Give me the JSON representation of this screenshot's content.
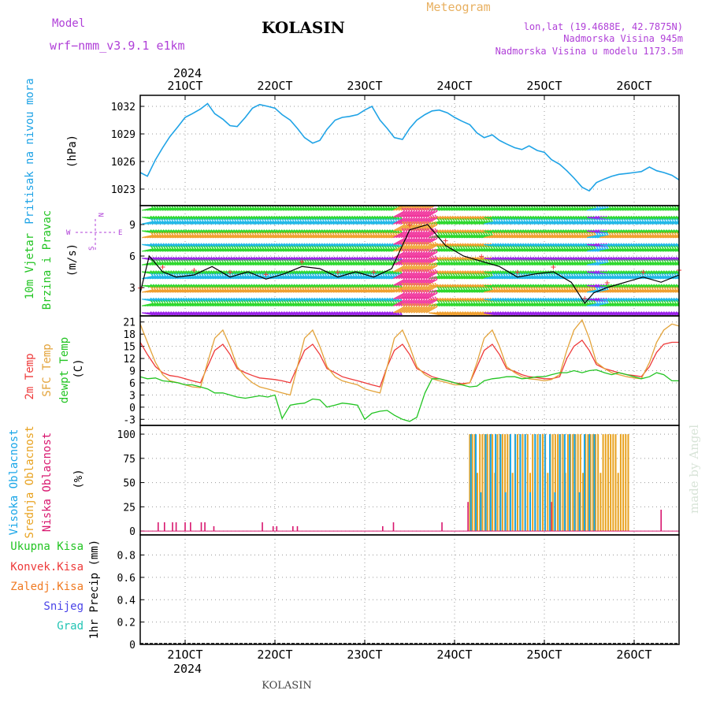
{
  "header": {
    "model_label": "Model",
    "model_name": "wrf−nmm_v3.9.1  e1km",
    "station": "KOLASIN",
    "chart_kind": "Meteogram",
    "lonlat": "lon,lat (19.4688E, 42.7875N)",
    "altitude": "Nadmorska Visina 945m",
    "model_altitude": "Nadmorska Visina u modelu 1173.5m",
    "year_top": "2024",
    "year_bottom": "2024",
    "footer_station": "KOLASIN",
    "watermark": "made by Angel"
  },
  "colors": {
    "pressure": "#1fa3e6",
    "temp2m": "#ee3a3a",
    "sfc_temp": "#e3a33a",
    "dewpoint": "#22c422",
    "high_cloud": "#19a6e8",
    "mid_cloud": "#e8a21f",
    "low_cloud": "#d8166e",
    "wind_green": "#2ed82e",
    "wind_cyan": "#22b8e8",
    "wind_purple": "#9a22e8",
    "wind_orange": "#f0a030",
    "wind_pink": "#f0309a",
    "total_precip": "#22c422",
    "conv_precip": "#ee3a3a",
    "frozen_precip": "#f07a22",
    "snow": "#4a44e8",
    "hail": "#22c4b4",
    "panel_label_purple": "#b040d8",
    "header_orange": "#e8b060"
  },
  "chart_data": [
    {
      "type": "line",
      "panel": "pressure",
      "ylabel_main": "Pritisak na nivou mora",
      "ylabel_unit": "(hPa)",
      "yticks": [
        1023,
        1026,
        1029,
        1032
      ],
      "ylim": [
        1021.2,
        1033.2
      ],
      "x_days": [
        20.5,
        26.5
      ],
      "xtick_days": [
        21,
        22,
        23,
        24,
        25,
        26
      ],
      "xtick_labels": [
        "21OCT",
        "22OCT",
        "23OCT",
        "24OCT",
        "25OCT",
        "26OCT"
      ],
      "grid": true,
      "series": [
        {
          "x": [
            20.5,
            20.58,
            20.67,
            20.75,
            20.83,
            20.92,
            21.0,
            21.08,
            21.17,
            21.25,
            21.33,
            21.42,
            21.5,
            21.58,
            21.67,
            21.75,
            21.83,
            21.92,
            22.0,
            22.08,
            22.17,
            22.25,
            22.33,
            22.42,
            22.5,
            22.58,
            22.67,
            22.75,
            22.83,
            22.92,
            23.0,
            23.08,
            23.17,
            23.25,
            23.33,
            23.42,
            23.5,
            23.58,
            23.67,
            23.75,
            23.83,
            23.92,
            24.0,
            24.08,
            24.17,
            24.25,
            24.33,
            24.42,
            24.5,
            24.58,
            24.67,
            24.75,
            24.83,
            24.92,
            25.0,
            25.08,
            25.17,
            25.25,
            25.33,
            25.42,
            25.5,
            25.58,
            25.67,
            25.75,
            25.83,
            25.92,
            26.0,
            26.08,
            26.17,
            26.25,
            26.33,
            26.42,
            26.5
          ],
          "values": [
            1024.8,
            1024.4,
            1026.2,
            1027.5,
            1028.7,
            1029.8,
            1030.8,
            1031.2,
            1031.7,
            1032.3,
            1031.2,
            1030.6,
            1029.9,
            1029.8,
            1030.8,
            1031.8,
            1032.2,
            1032.0,
            1031.8,
            1031.1,
            1030.5,
            1029.6,
            1028.6,
            1028.0,
            1028.3,
            1029.5,
            1030.5,
            1030.8,
            1030.9,
            1031.1,
            1031.6,
            1032.0,
            1030.5,
            1029.6,
            1028.6,
            1028.4,
            1029.6,
            1030.5,
            1031.1,
            1031.5,
            1031.6,
            1031.3,
            1030.8,
            1030.4,
            1030.0,
            1029.1,
            1028.6,
            1028.9,
            1028.3,
            1027.9,
            1027.5,
            1027.3,
            1027.7,
            1027.2,
            1027.0,
            1026.2,
            1025.7,
            1025.0,
            1024.2,
            1023.2,
            1022.8,
            1023.7,
            1024.1,
            1024.4,
            1024.6,
            1024.7,
            1024.8,
            1024.9,
            1025.4,
            1025.0,
            1024.8,
            1024.5,
            1024.0
          ]
        }
      ]
    },
    {
      "type": "line",
      "panel": "wind",
      "ylabel_main": "10m Vjetar",
      "ylabel_sub": "Brzina i Pravac",
      "ylabel_unit": "(m/s)",
      "compass": {
        "n": "N",
        "s": "S",
        "e": "E",
        "w": "W"
      },
      "yticks": [
        3,
        6,
        9
      ],
      "ylim": [
        0.3,
        10.8
      ],
      "x_days": [
        20.5,
        26.5
      ],
      "series": [
        {
          "name": "speed",
          "x": [
            20.5,
            20.6,
            20.75,
            20.9,
            21.1,
            21.3,
            21.5,
            21.7,
            21.9,
            22.1,
            22.3,
            22.5,
            22.7,
            22.9,
            23.1,
            23.3,
            23.5,
            23.7,
            23.9,
            24.1,
            24.3,
            24.5,
            24.7,
            24.9,
            25.1,
            25.3,
            25.45,
            25.55,
            25.7,
            25.9,
            26.1,
            26.3,
            26.5
          ],
          "values": [
            2.5,
            6.0,
            4.5,
            4.0,
            4.2,
            5.0,
            4.0,
            4.5,
            3.8,
            4.3,
            5.0,
            4.8,
            4.0,
            4.5,
            4.0,
            4.8,
            8.5,
            9.0,
            7.0,
            6.0,
            5.5,
            5.0,
            4.0,
            4.3,
            4.5,
            3.5,
            1.5,
            2.5,
            3.0,
            3.5,
            4.0,
            3.5,
            4.2
          ]
        }
      ]
    },
    {
      "type": "line",
      "panel": "temperature",
      "ylabel_lines": [
        "2m Temp",
        "SFC Temp",
        "dewpt Temp"
      ],
      "ylabel_unit": "(C)",
      "yticks": [
        -3,
        0,
        3,
        6,
        9,
        12,
        15,
        18,
        21
      ],
      "ylim": [
        -4.5,
        22.5
      ],
      "x_days": [
        20.5,
        26.5
      ],
      "series": [
        {
          "name": "2m Temp",
          "x": [
            20.5,
            20.58,
            20.67,
            20.75,
            20.83,
            20.92,
            21.0,
            21.08,
            21.17,
            21.25,
            21.33,
            21.42,
            21.5,
            21.58,
            21.67,
            21.75,
            21.83,
            21.92,
            22.0,
            22.08,
            22.17,
            22.25,
            22.33,
            22.42,
            22.5,
            22.58,
            22.67,
            22.75,
            22.83,
            22.92,
            23.0,
            23.08,
            23.17,
            23.25,
            23.33,
            23.42,
            23.5,
            23.58,
            23.67,
            23.75,
            23.83,
            23.92,
            24.0,
            24.08,
            24.17,
            24.25,
            24.33,
            24.42,
            24.5,
            24.58,
            24.67,
            24.75,
            24.83,
            24.92,
            25.0,
            25.08,
            25.17,
            25.25,
            25.33,
            25.42,
            25.5,
            25.58,
            25.67,
            25.75,
            25.83,
            25.92,
            26.0,
            26.08,
            26.17,
            26.25,
            26.33,
            26.42,
            26.5
          ],
          "values": [
            16.0,
            13.0,
            10.0,
            8.5,
            7.8,
            7.5,
            7.0,
            6.5,
            6.0,
            10.0,
            14.0,
            15.5,
            13.0,
            9.5,
            8.5,
            7.8,
            7.2,
            7.0,
            6.8,
            6.5,
            6.0,
            10.0,
            14.0,
            15.5,
            13.0,
            9.5,
            8.5,
            7.5,
            7.0,
            6.5,
            6.0,
            5.5,
            5.0,
            10.0,
            14.0,
            15.5,
            13.0,
            9.5,
            8.5,
            7.5,
            7.0,
            6.5,
            6.0,
            5.8,
            6.0,
            10.0,
            14.0,
            15.5,
            13.0,
            9.5,
            8.8,
            8.0,
            7.5,
            7.3,
            7.0,
            7.0,
            7.5,
            12.0,
            15.0,
            16.5,
            14.0,
            10.5,
            9.5,
            9.0,
            8.5,
            8.0,
            7.8,
            7.5,
            10.0,
            13.5,
            15.5,
            16.0,
            16.0
          ]
        },
        {
          "name": "SFC Temp",
          "x": [
            20.5,
            20.58,
            20.67,
            20.75,
            20.83,
            20.92,
            21.0,
            21.08,
            21.17,
            21.25,
            21.33,
            21.42,
            21.5,
            21.58,
            21.67,
            21.75,
            21.83,
            21.92,
            22.0,
            22.08,
            22.17,
            22.25,
            22.33,
            22.42,
            22.5,
            22.58,
            22.67,
            22.75,
            22.83,
            22.92,
            23.0,
            23.08,
            23.17,
            23.25,
            23.33,
            23.42,
            23.5,
            23.58,
            23.67,
            23.75,
            23.83,
            23.92,
            24.0,
            24.08,
            24.17,
            24.25,
            24.33,
            24.42,
            24.5,
            24.58,
            24.67,
            24.75,
            24.83,
            24.92,
            25.0,
            25.08,
            25.17,
            25.25,
            25.33,
            25.42,
            25.5,
            25.58,
            25.67,
            25.75,
            25.83,
            25.92,
            26.0,
            26.08,
            26.17,
            26.25,
            26.33,
            26.42,
            26.5
          ],
          "values": [
            20.5,
            16.0,
            11.0,
            8.0,
            6.5,
            6.0,
            5.5,
            5.0,
            4.8,
            11.0,
            17.0,
            19.0,
            15.0,
            10.0,
            7.5,
            6.0,
            5.0,
            4.5,
            4.0,
            3.5,
            3.0,
            10.0,
            17.0,
            19.0,
            15.0,
            10.0,
            7.5,
            6.5,
            6.0,
            5.5,
            4.5,
            4.0,
            3.5,
            10.0,
            17.0,
            19.0,
            15.0,
            10.0,
            8.0,
            7.0,
            6.5,
            6.0,
            5.5,
            5.5,
            6.0,
            11.0,
            17.0,
            19.0,
            15.0,
            10.0,
            8.5,
            7.5,
            7.0,
            6.8,
            6.5,
            6.8,
            8.0,
            14.0,
            19.0,
            21.5,
            17.0,
            11.0,
            9.5,
            8.5,
            8.0,
            7.5,
            7.2,
            7.0,
            11.0,
            16.0,
            19.0,
            20.5,
            20.0
          ]
        },
        {
          "name": "dewpt Temp",
          "x": [
            20.5,
            20.58,
            20.67,
            20.75,
            20.83,
            20.92,
            21.0,
            21.08,
            21.17,
            21.25,
            21.33,
            21.42,
            21.5,
            21.58,
            21.67,
            21.75,
            21.83,
            21.92,
            22.0,
            22.08,
            22.17,
            22.25,
            22.33,
            22.42,
            22.5,
            22.58,
            22.67,
            22.75,
            22.83,
            22.92,
            23.0,
            23.08,
            23.17,
            23.25,
            23.33,
            23.42,
            23.5,
            23.58,
            23.67,
            23.75,
            23.83,
            23.92,
            24.0,
            24.08,
            24.17,
            24.25,
            24.33,
            24.42,
            24.5,
            24.58,
            24.67,
            24.75,
            24.83,
            24.92,
            25.0,
            25.08,
            25.17,
            25.25,
            25.33,
            25.42,
            25.5,
            25.58,
            25.67,
            25.75,
            25.83,
            25.92,
            26.0,
            26.08,
            26.17,
            26.25,
            26.33,
            26.42,
            26.5
          ],
          "values": [
            7.5,
            7.0,
            7.2,
            6.5,
            6.3,
            6.0,
            5.5,
            5.5,
            5.0,
            4.5,
            3.5,
            3.5,
            3.0,
            2.5,
            2.2,
            2.5,
            2.8,
            2.5,
            3.0,
            -2.8,
            0.5,
            0.8,
            1.0,
            2.0,
            1.8,
            0.0,
            0.5,
            1.0,
            0.8,
            0.5,
            -3.0,
            -1.5,
            -1.0,
            -0.8,
            -2.0,
            -3.0,
            -3.5,
            -2.5,
            3.5,
            7.0,
            7.0,
            6.5,
            6.0,
            5.5,
            5.0,
            5.2,
            6.5,
            7.0,
            7.2,
            7.5,
            7.5,
            7.0,
            7.2,
            7.5,
            7.5,
            8.0,
            8.5,
            8.5,
            9.0,
            8.5,
            9.0,
            9.2,
            8.5,
            8.0,
            8.5,
            8.0,
            7.5,
            7.0,
            7.5,
            8.5,
            8.0,
            6.5,
            6.5
          ]
        }
      ]
    },
    {
      "type": "bar",
      "panel": "cloud_cover",
      "ylabel_lines": [
        "Visoka Oblacnost",
        "Srednja Oblacnost",
        "Niska Oblacnost"
      ],
      "ylabel_unit": "(%)",
      "yticks": [
        0,
        25,
        50,
        75,
        100
      ],
      "ylim": [
        -4,
        109
      ],
      "x_days": [
        20.5,
        26.5
      ],
      "low_bars": [
        {
          "x": 20.7,
          "v": 9
        },
        {
          "x": 20.77,
          "v": 9
        },
        {
          "x": 20.86,
          "v": 9
        },
        {
          "x": 20.9,
          "v": 9
        },
        {
          "x": 21.0,
          "v": 9
        },
        {
          "x": 21.06,
          "v": 9
        },
        {
          "x": 21.18,
          "v": 9
        },
        {
          "x": 21.22,
          "v": 9
        },
        {
          "x": 21.32,
          "v": 5
        },
        {
          "x": 21.86,
          "v": 9
        },
        {
          "x": 21.98,
          "v": 5
        },
        {
          "x": 22.02,
          "v": 5
        },
        {
          "x": 22.2,
          "v": 5
        },
        {
          "x": 22.25,
          "v": 5
        },
        {
          "x": 23.2,
          "v": 5
        },
        {
          "x": 23.32,
          "v": 9
        },
        {
          "x": 23.86,
          "v": 9
        },
        {
          "x": 24.15,
          "v": 30
        },
        {
          "x": 25.08,
          "v": 30
        },
        {
          "x": 26.3,
          "v": 22
        }
      ],
      "mid_start": 24.17,
      "mid_end": 25.94,
      "mid_step": 0.028,
      "mid_value": 100,
      "high_start": 24.17,
      "high_end": 25.58,
      "high_step": 0.055,
      "high_value": 100
    },
    {
      "type": "bar",
      "panel": "precipitation",
      "legend": [
        "Ukupna Kisa",
        "Konvek.Kisa",
        "Zaledj.Kisa",
        "Snijeg",
        "Grad"
      ],
      "ylabel": "1hr Precip (mm)",
      "yticks": [
        0,
        0.2,
        0.4,
        0.6,
        0.8
      ],
      "ylim": [
        0,
        0.98
      ],
      "x_days": [
        20.5,
        26.5
      ],
      "values": []
    }
  ]
}
